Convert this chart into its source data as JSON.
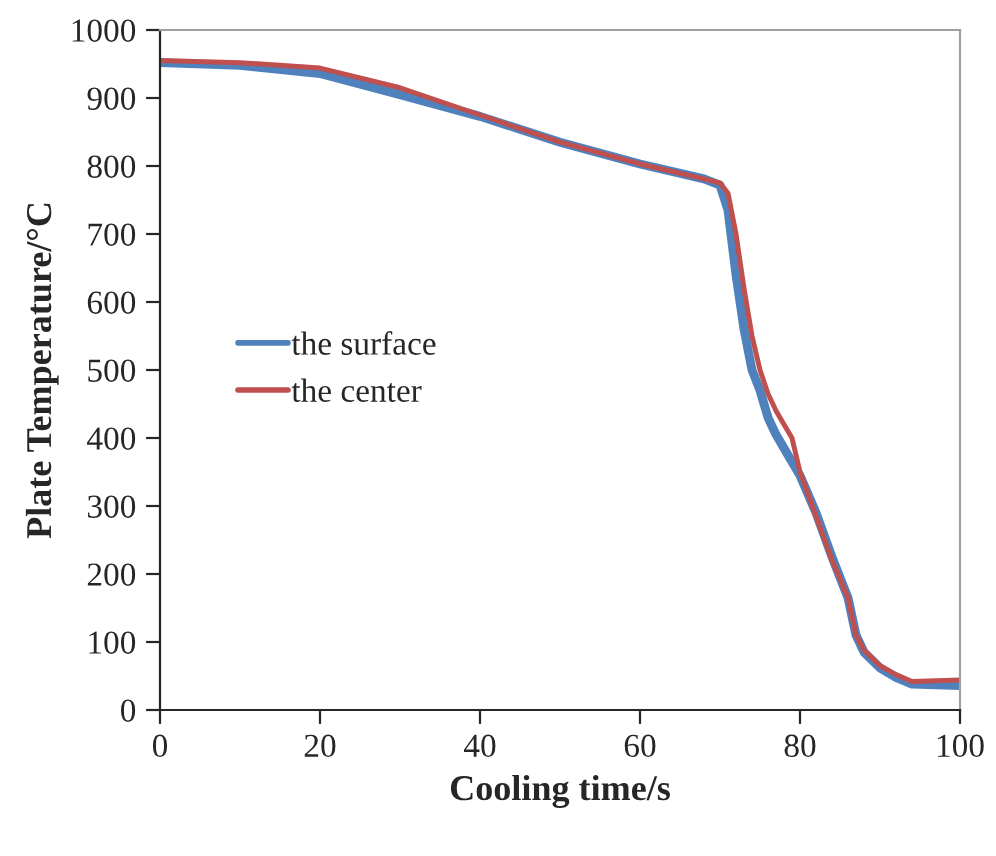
{
  "chart_data": {
    "type": "line",
    "xlabel": "Cooling time/s",
    "ylabel": "Plate Temperature/°C",
    "xlim": [
      0,
      100
    ],
    "xticks": [
      0,
      20,
      40,
      60,
      80,
      100
    ],
    "ylim": [
      0,
      1000
    ],
    "yticks": [
      0,
      100,
      200,
      300,
      400,
      500,
      600,
      700,
      800,
      900,
      1000
    ],
    "grid": false,
    "legend": "left",
    "marker": "none",
    "line_style": "solid",
    "series": [
      {
        "name": "the surface",
        "color": "#4f81bd",
        "x": [
          0,
          10,
          20,
          30,
          40,
          50,
          60,
          68,
          70,
          71,
          72,
          73,
          74,
          75,
          76,
          77,
          78,
          80,
          82,
          84,
          86,
          87,
          88,
          90,
          92,
          94,
          100
        ],
        "values": [
          952,
          948,
          936,
          905,
          873,
          835,
          803,
          781,
          772,
          735,
          640,
          560,
          500,
          470,
          430,
          405,
          385,
          345,
          290,
          225,
          165,
          110,
          85,
          62,
          48,
          38,
          36
        ]
      },
      {
        "name": "the center",
        "color": "#c0504d",
        "x": [
          0,
          10,
          20,
          30,
          40,
          50,
          60,
          68,
          70,
          71,
          72,
          73,
          74,
          75,
          76,
          77,
          78,
          79,
          80,
          82,
          84,
          86,
          87,
          88,
          90,
          92,
          94,
          100
        ],
        "values": [
          955,
          952,
          944,
          915,
          875,
          835,
          803,
          781,
          775,
          760,
          700,
          620,
          550,
          500,
          465,
          440,
          420,
          400,
          350,
          285,
          220,
          165,
          110,
          88,
          65,
          52,
          42,
          44
        ]
      }
    ]
  }
}
